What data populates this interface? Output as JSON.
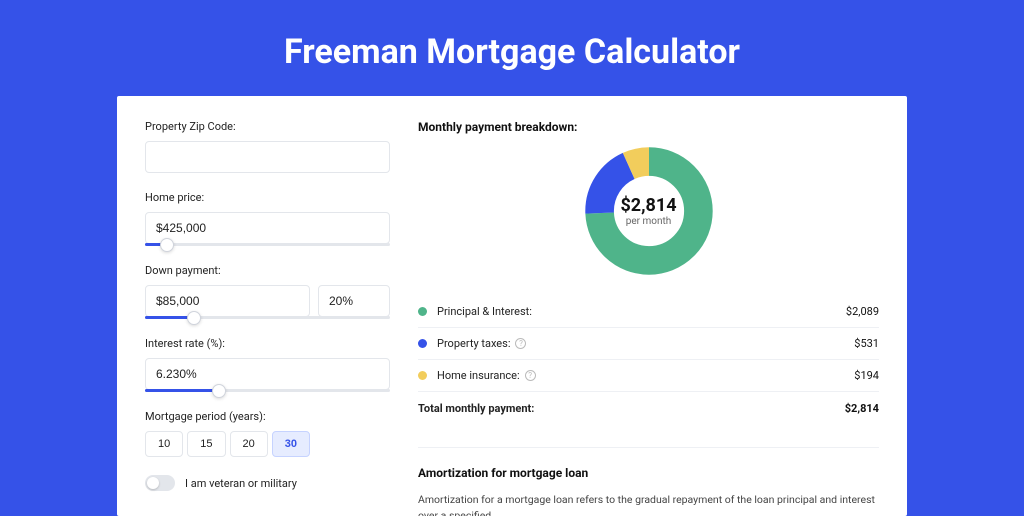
{
  "title": "Freeman Mortgage Calculator",
  "form": {
    "zip_label": "Property Zip Code:",
    "zip_value": "",
    "price_label": "Home price:",
    "price_value": "$425,000",
    "price_slider_pct": 9,
    "down_label": "Down payment:",
    "down_value": "$85,000",
    "down_pct_value": "20%",
    "down_slider_pct": 20,
    "rate_label": "Interest rate (%):",
    "rate_value": "6.230%",
    "rate_slider_pct": 30,
    "period_label": "Mortgage period (years):",
    "period_options": [
      "10",
      "15",
      "20",
      "30"
    ],
    "period_selected": "30",
    "veteran_label": "I am veteran or military",
    "veteran_on": false
  },
  "breakdown": {
    "title": "Monthly payment breakdown:",
    "donut": {
      "amount": "$2,814",
      "sub": "per month",
      "segments": [
        {
          "label": "Principal & Interest:",
          "value": "$2,089",
          "color": "#4fb48a",
          "pct": 74.2,
          "has_info": false
        },
        {
          "label": "Property taxes:",
          "value": "$531",
          "color": "#3552e8",
          "pct": 18.9,
          "has_info": true
        },
        {
          "label": "Home insurance:",
          "value": "$194",
          "color": "#f2cd5c",
          "pct": 6.9,
          "has_info": true
        }
      ],
      "stroke_width": 22
    },
    "total_label": "Total monthly payment:",
    "total_value": "$2,814"
  },
  "amort": {
    "title": "Amortization for mortgage loan",
    "text": "Amortization for a mortgage loan refers to the gradual repayment of the loan principal and interest over a specified"
  },
  "colors": {
    "page_bg": "#3552e8",
    "card_bg": "#ffffff",
    "border": "#e3e6eb"
  }
}
